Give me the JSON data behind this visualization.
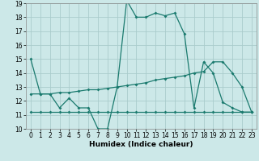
{
  "xlabel": "Humidex (Indice chaleur)",
  "xlim": [
    -0.5,
    23.5
  ],
  "ylim": [
    10,
    19
  ],
  "yticks": [
    10,
    11,
    12,
    13,
    14,
    15,
    16,
    17,
    18,
    19
  ],
  "xticks": [
    0,
    1,
    2,
    3,
    4,
    5,
    6,
    7,
    8,
    9,
    10,
    11,
    12,
    13,
    14,
    15,
    16,
    17,
    18,
    19,
    20,
    21,
    22,
    23
  ],
  "background_color": "#cce8e8",
  "grid_color": "#aacccc",
  "line_color": "#1a7a6e",
  "line1_x": [
    0,
    1,
    2,
    3,
    4,
    5,
    6,
    7,
    8,
    9,
    10,
    11,
    12,
    13,
    14,
    15,
    16,
    17,
    18,
    19,
    20,
    21,
    22,
    23
  ],
  "line1_y": [
    15.0,
    12.5,
    12.5,
    11.5,
    12.2,
    11.5,
    11.5,
    10.0,
    10.0,
    13.0,
    19.2,
    18.0,
    18.0,
    18.3,
    18.1,
    18.3,
    16.8,
    11.5,
    14.8,
    14.0,
    11.9,
    11.5,
    11.2,
    11.2
  ],
  "line2_x": [
    0,
    1,
    2,
    3,
    4,
    5,
    6,
    7,
    8,
    9,
    10,
    11,
    12,
    13,
    14,
    15,
    16,
    17,
    18,
    19,
    20,
    21,
    22,
    23
  ],
  "line2_y": [
    12.5,
    12.5,
    12.5,
    12.6,
    12.6,
    12.7,
    12.8,
    12.8,
    12.9,
    13.0,
    13.1,
    13.2,
    13.3,
    13.5,
    13.6,
    13.7,
    13.8,
    14.0,
    14.1,
    14.8,
    14.8,
    14.0,
    13.0,
    11.2
  ],
  "line3_x": [
    0,
    1,
    2,
    3,
    4,
    5,
    6,
    7,
    8,
    9,
    10,
    11,
    12,
    13,
    14,
    15,
    16,
    17,
    18,
    19,
    20,
    21,
    22,
    23
  ],
  "line3_y": [
    11.2,
    11.2,
    11.2,
    11.2,
    11.2,
    11.2,
    11.2,
    11.2,
    11.2,
    11.2,
    11.2,
    11.2,
    11.2,
    11.2,
    11.2,
    11.2,
    11.2,
    11.2,
    11.2,
    11.2,
    11.2,
    11.2,
    11.2,
    11.2
  ],
  "markersize": 2.0,
  "linewidth": 0.9,
  "xlabel_fontsize": 6.5,
  "tick_fontsize": 5.5
}
